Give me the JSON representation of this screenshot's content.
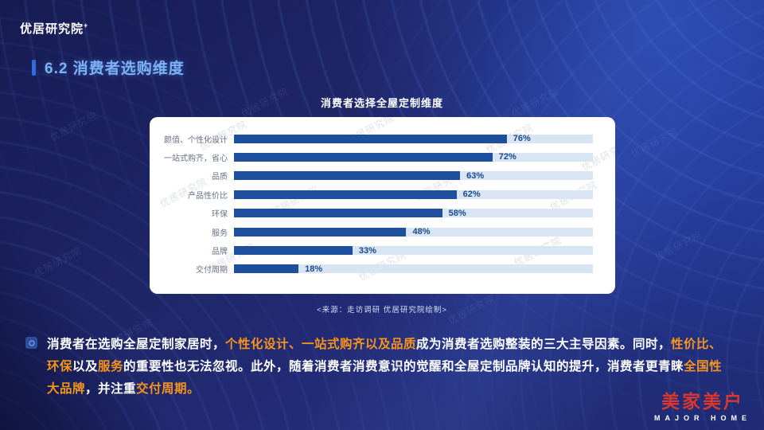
{
  "slide": {
    "brand_logo": "优居研究院",
    "brand_logo_sup": "+",
    "section_title": "6.2 消费者选购维度",
    "source_note": "<来源：走访调研 优居研究院绘制>",
    "watermark_text": "优居研究院"
  },
  "chart_data": {
    "type": "bar",
    "orientation": "horizontal",
    "title": "消费者选择全屋定制维度",
    "categories": [
      "颜值、个性化设计",
      "一站式购齐，省心",
      "品质",
      "产品性价比",
      "环保",
      "服务",
      "品牌",
      "交付周期"
    ],
    "values": [
      76,
      72,
      63,
      62,
      58,
      48,
      33,
      18
    ],
    "value_suffix": "%",
    "xlim": [
      0,
      100
    ],
    "grid": false,
    "legend": false,
    "bar_color": "#1d4f9d",
    "track_color": "#d9e5f2",
    "value_label_color": "#19498f"
  },
  "paragraph": {
    "highlight_color": "#f7941d",
    "segments": [
      {
        "text": "消费者在选购全屋定制家居时，",
        "highlight": false
      },
      {
        "text": "个性化设计、一站式购齐以及品质",
        "highlight": true
      },
      {
        "text": "成为消费者选购整装的三大主导因素。同时，",
        "highlight": false
      },
      {
        "text": "性价比、环保",
        "highlight": true
      },
      {
        "text": "以及",
        "highlight": false
      },
      {
        "text": "服务",
        "highlight": true
      },
      {
        "text": "的重要性也无法忽视。此外，随着消费者消费意识的觉醒和全屋定制品牌认知的提升，消费者更青睐",
        "highlight": false
      },
      {
        "text": "全国性大品牌",
        "highlight": true
      },
      {
        "text": "，并注重",
        "highlight": false
      },
      {
        "text": "交付周期。",
        "highlight": true
      }
    ]
  },
  "footer_logo": {
    "cn": "美家美户",
    "en": "MAJOR HOME",
    "color": "#da372e"
  }
}
